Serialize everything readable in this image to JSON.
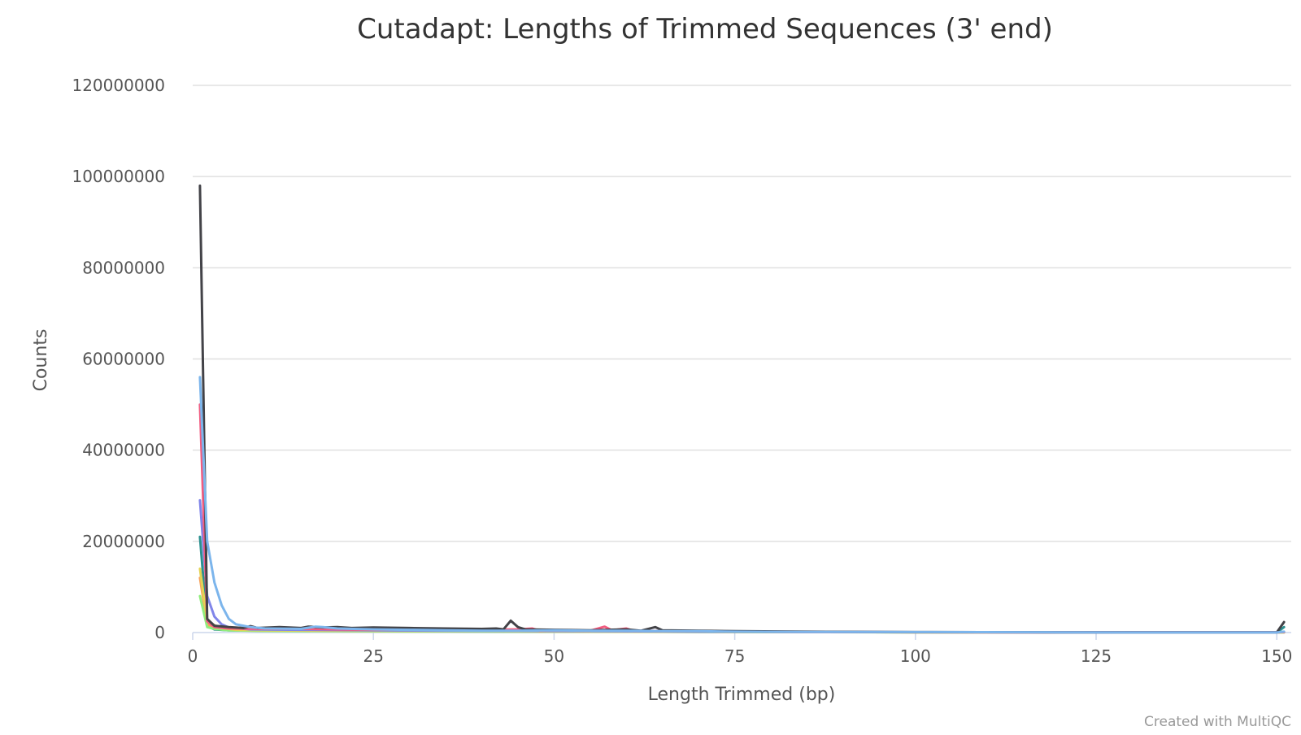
{
  "chart_data": {
    "type": "line",
    "title": "Cutadapt: Lengths of Trimmed Sequences (3' end)",
    "xlabel": "Length Trimmed (bp)",
    "ylabel": "Counts",
    "xlim": [
      0,
      152
    ],
    "ylim": [
      0,
      120000000
    ],
    "xticks": [
      0,
      25,
      50,
      75,
      100,
      125,
      150
    ],
    "yticks": [
      0,
      20000000,
      40000000,
      60000000,
      80000000,
      100000000,
      120000000
    ],
    "grid": true,
    "legend": "none",
    "credit": "Created with MultiQC",
    "series": [
      {
        "color": "#7cb5ec",
        "points": [
          [
            1,
            56000000
          ],
          [
            2,
            20000000
          ],
          [
            3,
            11000000
          ],
          [
            4,
            6000000
          ],
          [
            5,
            3000000
          ],
          [
            6,
            1800000
          ],
          [
            8,
            1200000
          ],
          [
            10,
            900000
          ],
          [
            15,
            800000
          ],
          [
            17,
            1300000
          ],
          [
            18,
            1200000
          ],
          [
            20,
            900000
          ],
          [
            25,
            700000
          ],
          [
            30,
            600000
          ],
          [
            35,
            500000
          ],
          [
            40,
            400000
          ],
          [
            45,
            400000
          ],
          [
            50,
            500000
          ],
          [
            55,
            400000
          ],
          [
            60,
            400000
          ],
          [
            65,
            300000
          ],
          [
            70,
            300000
          ],
          [
            75,
            200000
          ],
          [
            85,
            150000
          ],
          [
            100,
            100000
          ],
          [
            118,
            80000
          ],
          [
            120,
            30000
          ],
          [
            130,
            20000
          ],
          [
            140,
            20000
          ],
          [
            150,
            20000
          ],
          [
            151,
            200000
          ]
        ]
      },
      {
        "color": "#434348",
        "points": [
          [
            1,
            98000000
          ],
          [
            2,
            3000000
          ],
          [
            3,
            1500000
          ],
          [
            5,
            1200000
          ],
          [
            7,
            1000000
          ],
          [
            8,
            1400000
          ],
          [
            9,
            1000000
          ],
          [
            12,
            1200000
          ],
          [
            15,
            1000000
          ],
          [
            16,
            1300000
          ],
          [
            18,
            1100000
          ],
          [
            20,
            1200000
          ],
          [
            22,
            1000000
          ],
          [
            25,
            1100000
          ],
          [
            30,
            1000000
          ],
          [
            35,
            900000
          ],
          [
            40,
            800000
          ],
          [
            42,
            900000
          ],
          [
            43,
            700000
          ],
          [
            44,
            2600000
          ],
          [
            45,
            1200000
          ],
          [
            46,
            700000
          ],
          [
            50,
            600000
          ],
          [
            55,
            500000
          ],
          [
            60,
            700000
          ],
          [
            62,
            400000
          ],
          [
            64,
            1200000
          ],
          [
            65,
            500000
          ],
          [
            70,
            400000
          ],
          [
            75,
            300000
          ],
          [
            85,
            200000
          ],
          [
            100,
            100000
          ],
          [
            120,
            50000
          ],
          [
            140,
            40000
          ],
          [
            150,
            40000
          ],
          [
            151,
            2300000
          ]
        ]
      },
      {
        "color": "#f15c80",
        "points": [
          [
            1,
            50000000
          ],
          [
            2,
            2500000
          ],
          [
            3,
            1200000
          ],
          [
            5,
            900000
          ],
          [
            10,
            800000
          ],
          [
            15,
            800000
          ],
          [
            20,
            700000
          ],
          [
            25,
            600000
          ],
          [
            30,
            700000
          ],
          [
            35,
            600000
          ],
          [
            40,
            600000
          ],
          [
            45,
            700000
          ],
          [
            47,
            900000
          ],
          [
            48,
            400000
          ],
          [
            50,
            500000
          ],
          [
            55,
            400000
          ],
          [
            57,
            1300000
          ],
          [
            58,
            500000
          ],
          [
            60,
            900000
          ],
          [
            61,
            400000
          ],
          [
            65,
            300000
          ],
          [
            70,
            300000
          ],
          [
            75,
            200000
          ],
          [
            85,
            150000
          ],
          [
            100,
            80000
          ],
          [
            120,
            30000
          ],
          [
            150,
            30000
          ],
          [
            151,
            100000
          ]
        ]
      },
      {
        "color": "#8085e9",
        "points": [
          [
            1,
            29000000
          ],
          [
            2,
            8000000
          ],
          [
            3,
            3500000
          ],
          [
            4,
            1800000
          ],
          [
            5,
            1100000
          ],
          [
            8,
            700000
          ],
          [
            15,
            600000
          ],
          [
            25,
            500000
          ],
          [
            35,
            400000
          ],
          [
            45,
            350000
          ],
          [
            55,
            300000
          ],
          [
            65,
            250000
          ],
          [
            70,
            200000
          ],
          [
            85,
            150000
          ],
          [
            100,
            90000
          ],
          [
            120,
            30000
          ],
          [
            150,
            30000
          ],
          [
            151,
            150000
          ]
        ]
      },
      {
        "color": "#e4d354",
        "points": [
          [
            1,
            14000000
          ],
          [
            2,
            2500000
          ],
          [
            3,
            1600000
          ],
          [
            4,
            1000000
          ],
          [
            6,
            600000
          ],
          [
            10,
            500000
          ],
          [
            20,
            400000
          ],
          [
            30,
            350000
          ],
          [
            40,
            300000
          ],
          [
            50,
            250000
          ],
          [
            60,
            200000
          ],
          [
            70,
            180000
          ],
          [
            85,
            120000
          ],
          [
            100,
            80000
          ],
          [
            120,
            25000
          ],
          [
            150,
            25000
          ],
          [
            151,
            80000
          ]
        ]
      },
      {
        "color": "#90ed7d",
        "points": [
          [
            1,
            8000000
          ],
          [
            2,
            1200000
          ],
          [
            3,
            800000
          ],
          [
            5,
            500000
          ],
          [
            10,
            350000
          ],
          [
            20,
            300000
          ],
          [
            30,
            250000
          ],
          [
            40,
            220000
          ],
          [
            50,
            200000
          ],
          [
            60,
            180000
          ],
          [
            70,
            150000
          ],
          [
            85,
            100000
          ],
          [
            100,
            60000
          ],
          [
            120,
            20000
          ],
          [
            150,
            20000
          ],
          [
            151,
            50000
          ]
        ]
      },
      {
        "color": "#f7a35c",
        "points": [
          [
            1,
            12000000
          ],
          [
            2,
            1800000
          ],
          [
            3,
            1000000
          ],
          [
            5,
            600000
          ],
          [
            10,
            450000
          ],
          [
            20,
            380000
          ],
          [
            30,
            320000
          ],
          [
            40,
            280000
          ],
          [
            50,
            240000
          ],
          [
            60,
            210000
          ],
          [
            70,
            170000
          ],
          [
            85,
            110000
          ],
          [
            100,
            70000
          ],
          [
            120,
            25000
          ],
          [
            150,
            25000
          ],
          [
            151,
            60000
          ]
        ]
      },
      {
        "color": "#2b908f",
        "points": [
          [
            1,
            21000000
          ],
          [
            2,
            1500000
          ],
          [
            3,
            700000
          ],
          [
            5,
            500000
          ],
          [
            10,
            400000
          ],
          [
            20,
            350000
          ],
          [
            30,
            300000
          ],
          [
            40,
            250000
          ],
          [
            50,
            220000
          ],
          [
            60,
            200000
          ],
          [
            70,
            160000
          ],
          [
            85,
            110000
          ],
          [
            100,
            70000
          ],
          [
            120,
            25000
          ],
          [
            150,
            25000
          ],
          [
            151,
            1200000
          ]
        ]
      }
    ]
  }
}
